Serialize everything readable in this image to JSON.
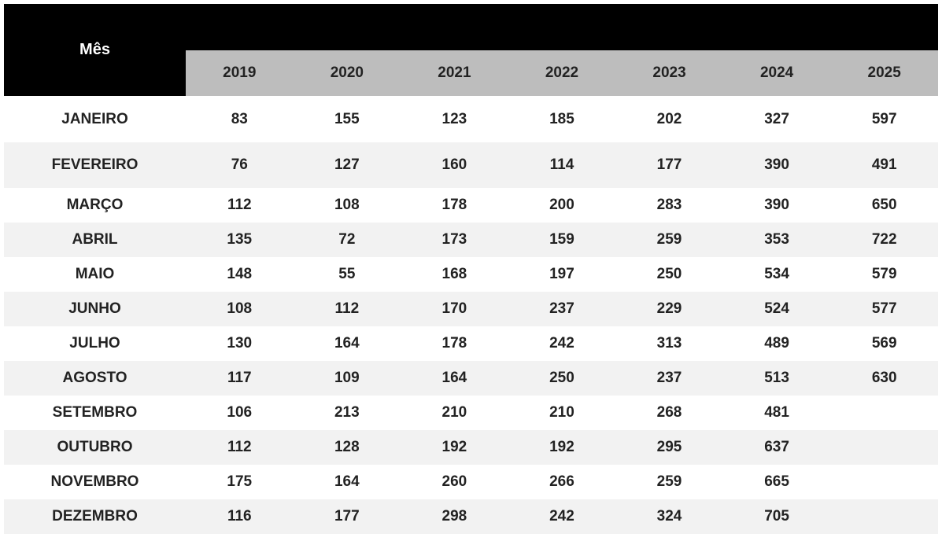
{
  "table": {
    "header": "Mês",
    "columns": [
      "2019",
      "2020",
      "2021",
      "2022",
      "2023",
      "2024",
      "2025"
    ],
    "rows": [
      {
        "month": "JANEIRO",
        "values": [
          83,
          155,
          123,
          185,
          202,
          327,
          597
        ]
      },
      {
        "month": "FEVEREIRO",
        "values": [
          76,
          127,
          160,
          114,
          177,
          390,
          491
        ]
      },
      {
        "month": "MARÇO",
        "values": [
          112,
          108,
          178,
          200,
          283,
          390,
          650
        ]
      },
      {
        "month": "ABRIL",
        "values": [
          135,
          72,
          173,
          159,
          259,
          353,
          722
        ]
      },
      {
        "month": "MAIO",
        "values": [
          148,
          55,
          168,
          197,
          250,
          534,
          579
        ]
      },
      {
        "month": "JUNHO",
        "values": [
          108,
          112,
          170,
          237,
          229,
          524,
          577
        ]
      },
      {
        "month": "JULHO",
        "values": [
          130,
          164,
          178,
          242,
          313,
          489,
          569
        ]
      },
      {
        "month": "AGOSTO",
        "values": [
          117,
          109,
          164,
          250,
          237,
          513,
          630
        ]
      },
      {
        "month": "SETEMBRO",
        "values": [
          106,
          213,
          210,
          210,
          268,
          481,
          null
        ]
      },
      {
        "month": "OUTUBRO",
        "values": [
          112,
          128,
          192,
          192,
          295,
          637,
          null
        ]
      },
      {
        "month": "NOVEMBRO",
        "values": [
          175,
          164,
          260,
          266,
          259,
          665,
          null
        ]
      },
      {
        "month": "DEZEMBRO",
        "values": [
          116,
          177,
          298,
          242,
          324,
          705,
          null
        ]
      }
    ]
  }
}
